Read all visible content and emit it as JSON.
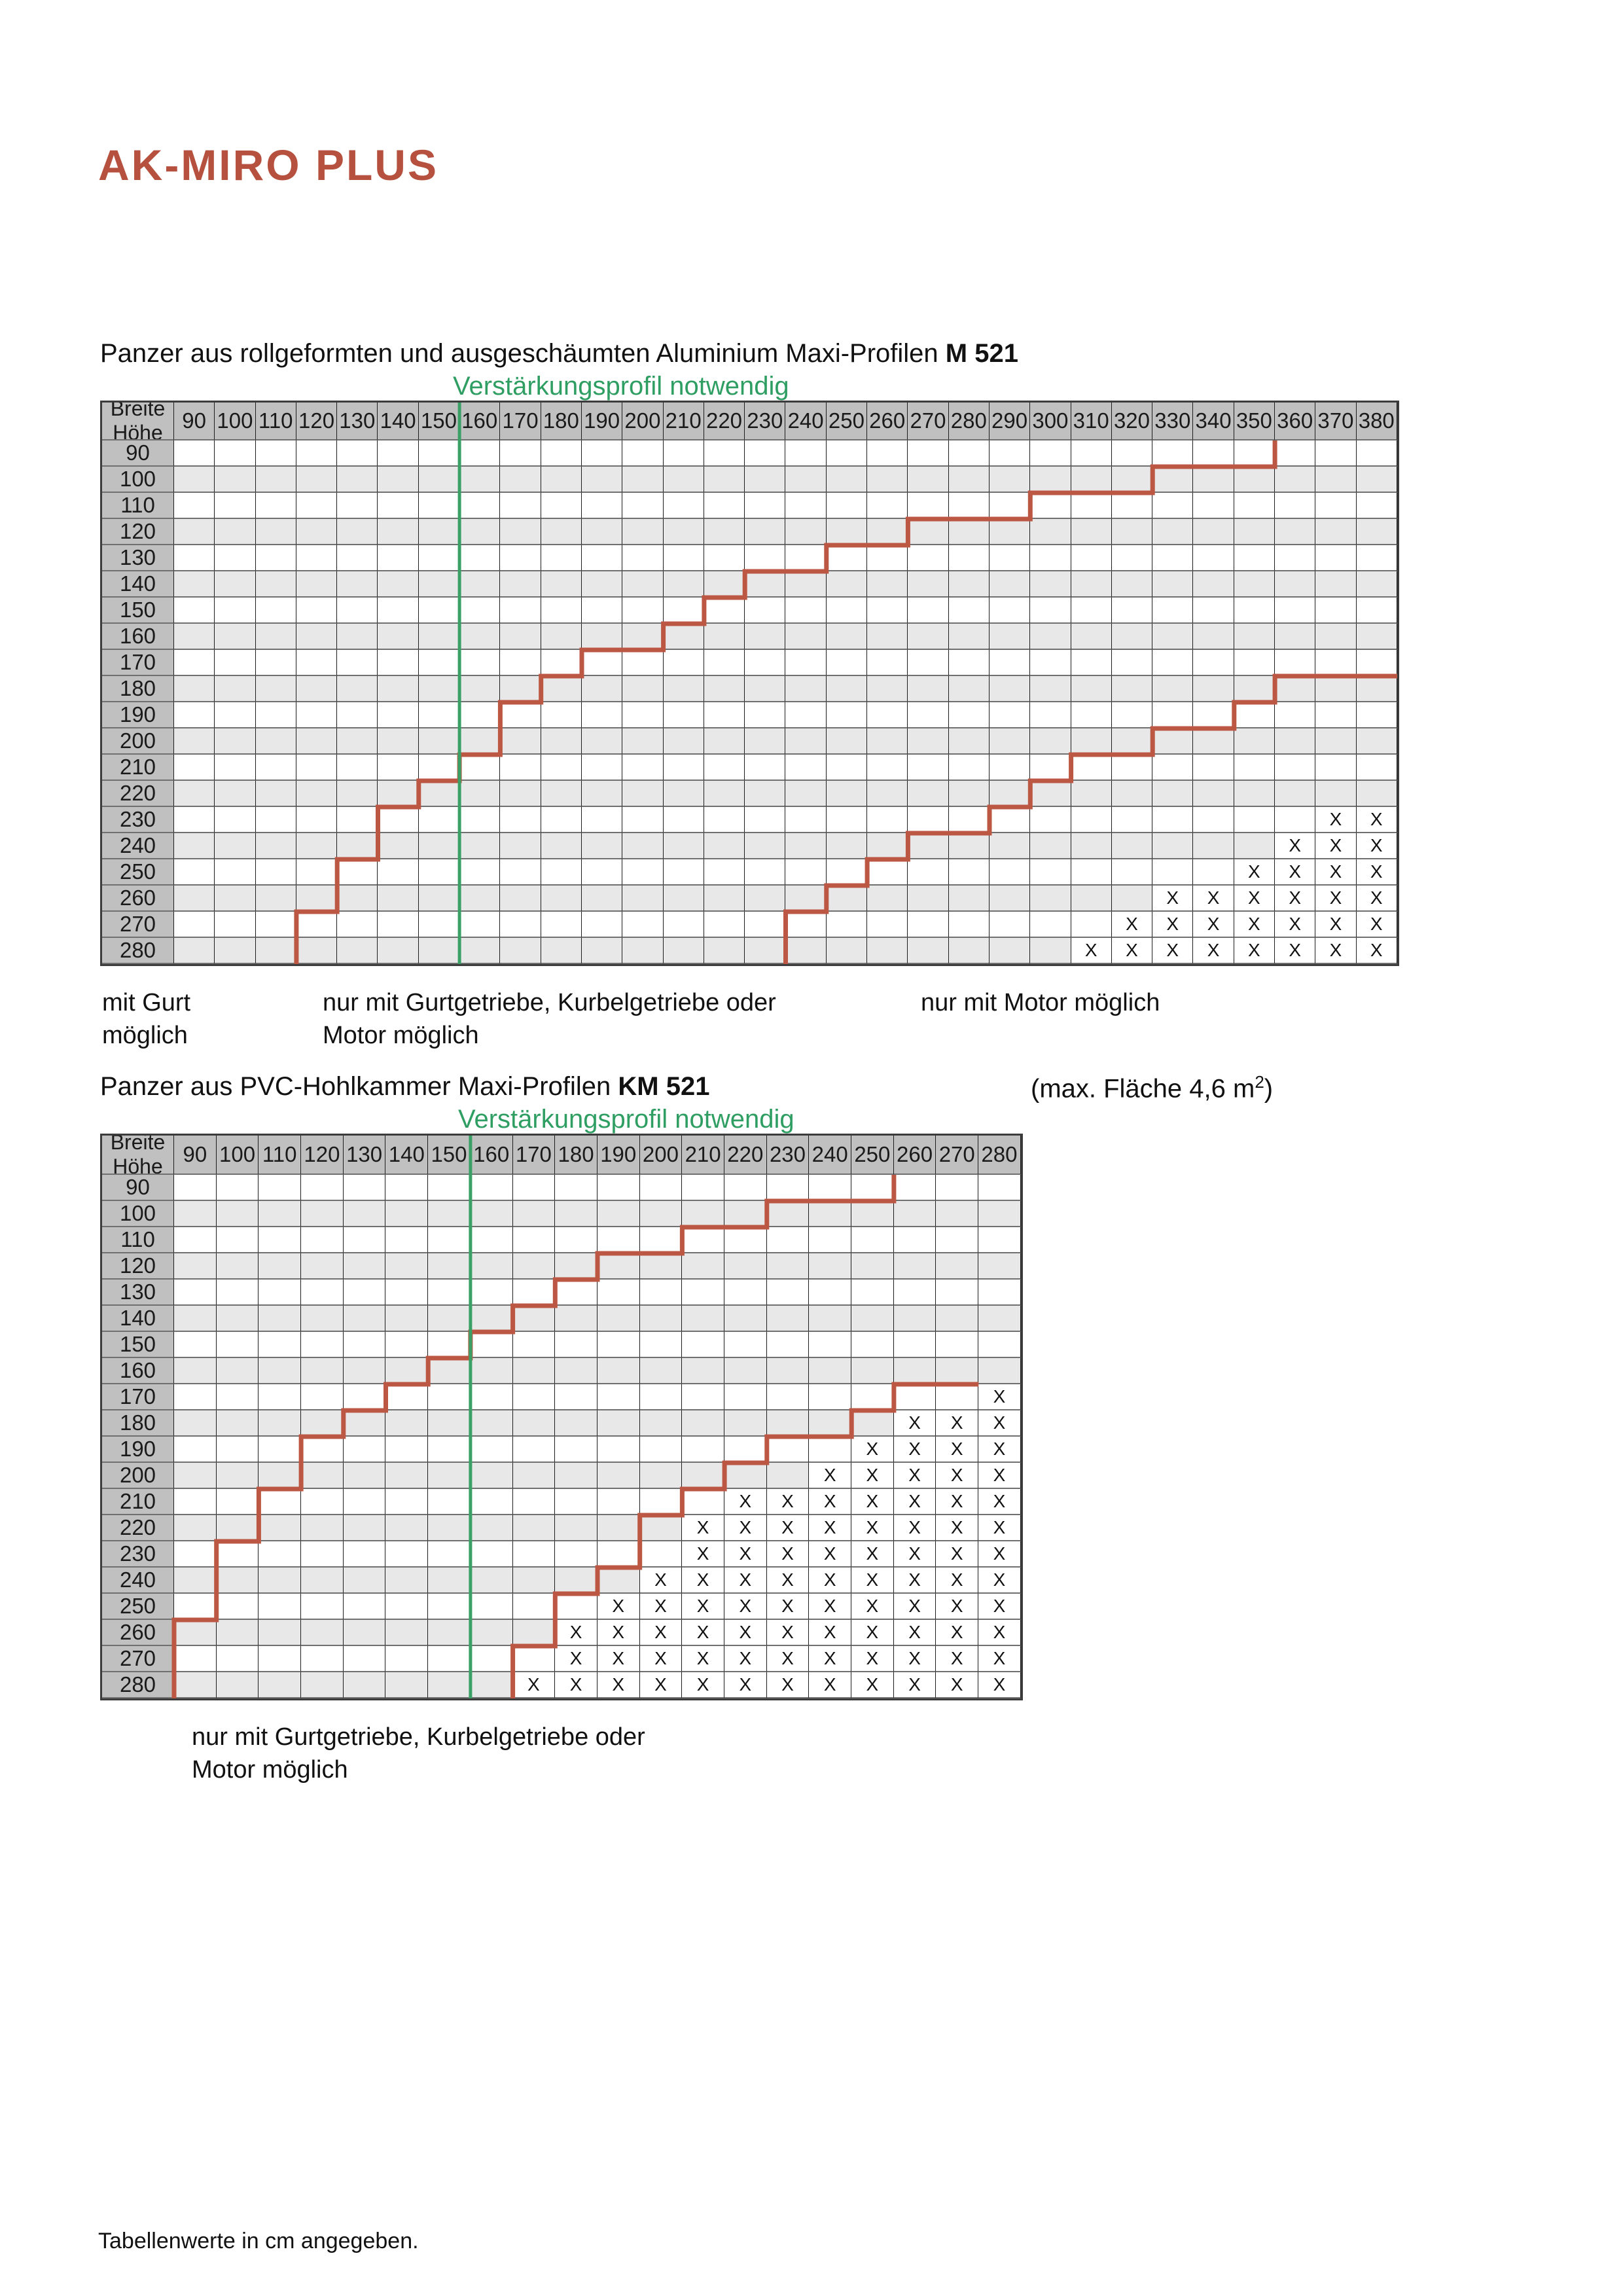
{
  "page": {
    "title": "AK-MIRO PLUS",
    "footnote": "Tabellenwerte in cm angegeben."
  },
  "colors": {
    "title_red": "#b5513e",
    "stair_red": "#bb5742",
    "green": "#3aa065",
    "header_gray": "#c1c0c0",
    "row_gray": "#e9e8e8",
    "grid_vertical": "#1c1c1c",
    "grid_horizontal": "#707070"
  },
  "corner": {
    "top": "Breite",
    "bottom": "Höhe"
  },
  "x_symbol": "X",
  "tables": [
    {
      "id": "m521",
      "heading_normal": "Panzer aus rollgeformten und ausgeschäumten Aluminium Maxi-Profilen",
      "heading_bold": "M 521",
      "green_label": "Verstärkungsprofil notwendig",
      "green_line_after_col": 150,
      "columns": [
        90,
        100,
        110,
        120,
        130,
        140,
        150,
        160,
        170,
        180,
        190,
        200,
        210,
        220,
        230,
        240,
        250,
        260,
        270,
        280,
        290,
        300,
        310,
        320,
        330,
        340,
        350,
        360,
        370,
        380
      ],
      "rows": [
        90,
        100,
        110,
        120,
        130,
        140,
        150,
        160,
        170,
        180,
        190,
        200,
        210,
        220,
        230,
        240,
        250,
        260,
        270,
        280
      ],
      "stairs": [
        {
          "name": "gurt-boundary",
          "rows_from": 90,
          "edges": [
            350,
            320,
            290,
            260,
            240,
            220,
            210,
            200,
            180,
            170,
            160,
            160,
            150,
            140,
            130,
            130,
            120,
            120,
            110,
            110
          ]
        },
        {
          "name": "motor-boundary",
          "rows_from": 180,
          "cap_to": 380,
          "edges": [
            350,
            340,
            320,
            300,
            290,
            280,
            260,
            250,
            240,
            230,
            230
          ]
        }
      ],
      "x_marks": {
        "230": [
          370,
          380
        ],
        "240": [
          360,
          370,
          380
        ],
        "250": [
          350,
          360,
          370,
          380
        ],
        "260": [
          330,
          340,
          350,
          360,
          370,
          380
        ],
        "270": [
          320,
          330,
          340,
          350,
          360,
          370,
          380
        ],
        "280": [
          310,
          320,
          330,
          340,
          350,
          360,
          370,
          380
        ]
      },
      "legend": [
        {
          "line1": "mit Gurt",
          "line2": "möglich"
        },
        {
          "line1": "nur mit Gurtgetriebe, Kurbelgetriebe oder",
          "line2": "Motor möglich"
        },
        {
          "line1": "nur mit Motor möglich",
          "line2": ""
        }
      ]
    },
    {
      "id": "km521",
      "heading_normal": "Panzer aus PVC-Hohlkammer Maxi-Profilen",
      "heading_bold": "KM 521",
      "heading_note_text": "(max. Fläche 4,6 m",
      "heading_note_sup": "2",
      "heading_note_end": ")",
      "green_label": "Verstärkungsprofil notwendig",
      "green_line_after_col": 150,
      "columns": [
        90,
        100,
        110,
        120,
        130,
        140,
        150,
        160,
        170,
        180,
        190,
        200,
        210,
        220,
        230,
        240,
        250,
        260,
        270,
        280
      ],
      "rows": [
        90,
        100,
        110,
        120,
        130,
        140,
        150,
        160,
        170,
        180,
        190,
        200,
        210,
        220,
        230,
        240,
        250,
        260,
        270,
        280
      ],
      "stairs": [
        {
          "name": "gurt-boundary",
          "rows_from": 90,
          "edges": [
            250,
            220,
            200,
            180,
            170,
            160,
            150,
            140,
            130,
            120,
            110,
            110,
            100,
            100,
            90,
            90,
            90,
            80,
            80,
            80
          ]
        },
        {
          "name": "motor-boundary",
          "rows_from": 170,
          "cap_to": 270,
          "edges": [
            250,
            240,
            220,
            210,
            200,
            190,
            190,
            180,
            170,
            170,
            160,
            160
          ]
        }
      ],
      "x_marks": {
        "170": [
          280
        ],
        "180": [
          260,
          270,
          280
        ],
        "190": [
          250,
          260,
          270,
          280
        ],
        "200": [
          240,
          250,
          260,
          270,
          280
        ],
        "210": [
          220,
          230,
          240,
          250,
          260,
          270,
          280
        ],
        "220": [
          210,
          220,
          230,
          240,
          250,
          260,
          270,
          280
        ],
        "230": [
          210,
          220,
          230,
          240,
          250,
          260,
          270,
          280
        ],
        "240": [
          200,
          210,
          220,
          230,
          240,
          250,
          260,
          270,
          280
        ],
        "250": [
          190,
          200,
          210,
          220,
          230,
          240,
          250,
          260,
          270,
          280
        ],
        "260": [
          180,
          190,
          200,
          210,
          220,
          230,
          240,
          250,
          260,
          270,
          280
        ],
        "270": [
          180,
          190,
          200,
          210,
          220,
          230,
          240,
          250,
          260,
          270,
          280
        ],
        "280": [
          170,
          180,
          190,
          200,
          210,
          220,
          230,
          240,
          250,
          260,
          270,
          280
        ]
      },
      "legend": [
        {
          "line1": "nur mit Gurtgetriebe, Kurbelgetriebe oder",
          "line2": "Motor möglich"
        }
      ]
    }
  ]
}
